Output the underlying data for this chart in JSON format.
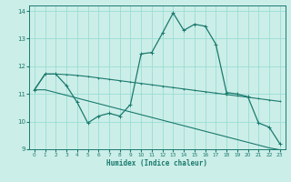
{
  "xlabel": "Humidex (Indice chaleur)",
  "background_color": "#cceee8",
  "grid_color": "#99ddd5",
  "line_color": "#1a7a6e",
  "xlim": [
    -0.5,
    23.5
  ],
  "ylim": [
    9.0,
    14.2
  ],
  "yticks": [
    9,
    10,
    11,
    12,
    13,
    14
  ],
  "xticks": [
    0,
    1,
    2,
    3,
    4,
    5,
    6,
    7,
    8,
    9,
    10,
    11,
    12,
    13,
    14,
    15,
    16,
    17,
    18,
    19,
    20,
    21,
    22,
    23
  ],
  "series1_x": [
    0,
    1,
    2,
    3,
    4,
    5,
    6,
    7,
    8,
    9,
    10,
    11,
    12,
    13,
    14,
    15,
    16,
    17,
    18,
    19,
    20,
    21,
    22,
    23
  ],
  "series1_y": [
    11.15,
    11.72,
    11.72,
    11.7,
    11.67,
    11.63,
    11.58,
    11.53,
    11.48,
    11.43,
    11.38,
    11.33,
    11.28,
    11.23,
    11.18,
    11.13,
    11.08,
    11.03,
    10.98,
    10.93,
    10.88,
    10.83,
    10.78,
    10.73
  ],
  "series2_x": [
    0,
    1,
    2,
    3,
    4,
    5,
    6,
    7,
    8,
    9,
    10,
    11,
    12,
    13,
    14,
    15,
    16,
    17,
    18,
    19,
    20,
    21,
    22,
    23
  ],
  "series2_y": [
    11.15,
    11.72,
    11.72,
    11.3,
    10.7,
    9.95,
    10.2,
    10.3,
    10.2,
    10.62,
    12.45,
    12.5,
    13.2,
    13.93,
    13.3,
    13.52,
    13.45,
    12.8,
    11.05,
    11.0,
    10.9,
    9.95,
    9.8,
    9.2
  ],
  "series3_x": [
    0,
    1,
    2,
    3,
    4,
    5,
    6,
    7,
    8,
    9,
    10,
    11,
    12,
    13,
    14,
    15,
    16,
    17,
    18,
    19,
    20,
    21,
    22,
    23
  ],
  "series3_y": [
    11.15,
    11.15,
    11.05,
    10.95,
    10.85,
    10.75,
    10.65,
    10.55,
    10.45,
    10.35,
    10.25,
    10.15,
    10.05,
    9.95,
    9.85,
    9.75,
    9.65,
    9.55,
    9.45,
    9.35,
    9.25,
    9.15,
    9.05,
    8.98
  ]
}
